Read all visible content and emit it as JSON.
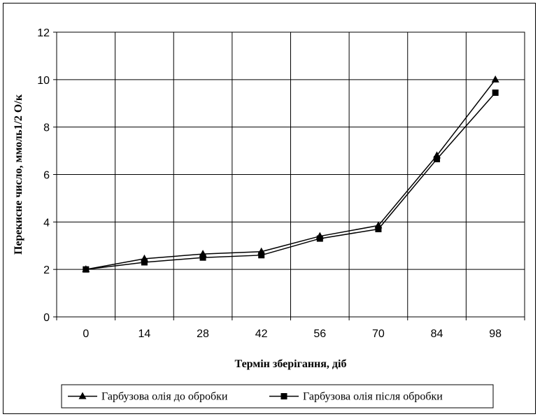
{
  "chart_data": {
    "type": "line",
    "title": "",
    "xlabel": "Термін зберігання, діб",
    "ylabel": "Перекисне число, ммоль1/2 О/к",
    "categories": [
      "0",
      "14",
      "28",
      "42",
      "56",
      "70",
      "84",
      "98"
    ],
    "ylim": [
      0,
      12
    ],
    "yticks": [
      0,
      2,
      4,
      6,
      8,
      10,
      12
    ],
    "grid": true,
    "legend_position": "bottom",
    "series": [
      {
        "name": "Гарбузова олія до обробки",
        "marker": "triangle",
        "color": "#000000",
        "values": [
          2.0,
          2.45,
          2.65,
          2.75,
          3.4,
          3.85,
          6.8,
          10.0
        ]
      },
      {
        "name": "Гарбузова олія після обробки",
        "marker": "square",
        "color": "#000000",
        "values": [
          2.0,
          2.3,
          2.5,
          2.6,
          3.3,
          3.7,
          6.65,
          9.45
        ]
      }
    ]
  }
}
